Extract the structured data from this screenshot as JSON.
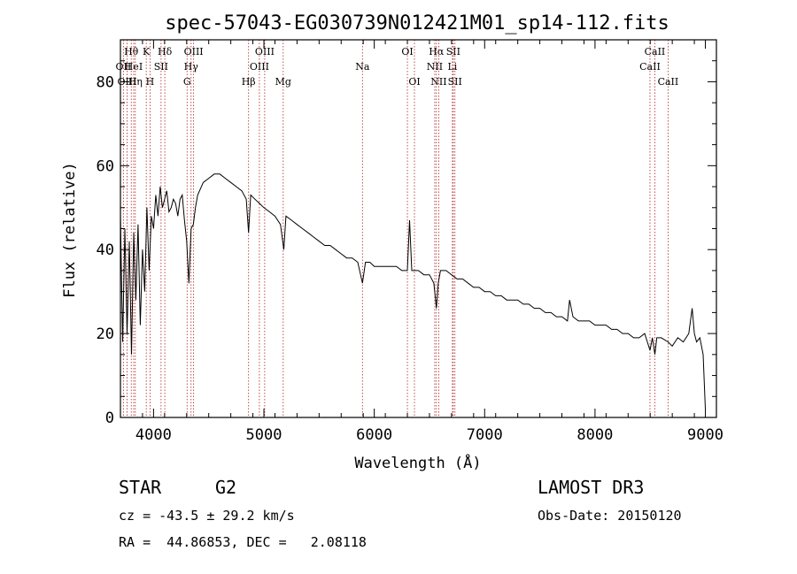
{
  "chart_data": {
    "type": "line",
    "title": "spec-57043-EG030739N012421M01_sp14-112.fits",
    "xlabel": "Wavelength (Å)",
    "ylabel": "Flux (relative)",
    "xlim": [
      3700,
      9100
    ],
    "ylim": [
      0,
      90
    ],
    "xticks": [
      4000,
      5000,
      6000,
      7000,
      8000,
      9000
    ],
    "yticks": [
      0,
      20,
      40,
      60,
      80
    ],
    "ytick_labels": [
      "0",
      "20",
      "40",
      "60",
      "80"
    ],
    "series": [
      {
        "name": "Flux",
        "x": [
          3700,
          3720,
          3740,
          3760,
          3780,
          3800,
          3820,
          3840,
          3860,
          3880,
          3900,
          3920,
          3940,
          3960,
          3980,
          4000,
          4020,
          4040,
          4060,
          4080,
          4100,
          4120,
          4140,
          4160,
          4180,
          4200,
          4220,
          4240,
          4260,
          4280,
          4300,
          4320,
          4340,
          4360,
          4380,
          4400,
          4450,
          4500,
          4550,
          4600,
          4650,
          4700,
          4750,
          4800,
          4840,
          4861,
          4880,
          4920,
          4960,
          5000,
          5050,
          5100,
          5150,
          5180,
          5200,
          5250,
          5300,
          5350,
          5400,
          5450,
          5500,
          5550,
          5600,
          5650,
          5700,
          5750,
          5800,
          5850,
          5893,
          5920,
          5960,
          6000,
          6050,
          6100,
          6150,
          6200,
          6250,
          6300,
          6320,
          6340,
          6360,
          6400,
          6450,
          6500,
          6540,
          6563,
          6580,
          6600,
          6650,
          6700,
          6750,
          6800,
          6850,
          6900,
          6950,
          7000,
          7050,
          7100,
          7150,
          7200,
          7250,
          7300,
          7350,
          7400,
          7450,
          7500,
          7550,
          7600,
          7650,
          7700,
          7750,
          7770,
          7800,
          7850,
          7900,
          7950,
          8000,
          8050,
          8100,
          8150,
          8200,
          8250,
          8300,
          8350,
          8400,
          8450,
          8498,
          8520,
          8542,
          8560,
          8600,
          8662,
          8700,
          8750,
          8800,
          8850,
          8880,
          8900,
          8920,
          8950,
          8980,
          9000
        ],
        "y": [
          48,
          18,
          45,
          20,
          42,
          15,
          44,
          28,
          46,
          22,
          40,
          30,
          50,
          35,
          48,
          45,
          53,
          48,
          55,
          50,
          52,
          54,
          49,
          50,
          52,
          51,
          48,
          52,
          53,
          47,
          42,
          32,
          45,
          46,
          50,
          53,
          56,
          57,
          58,
          58,
          57,
          56,
          55,
          54,
          52,
          44,
          53,
          52,
          51,
          50,
          49,
          48,
          46,
          40,
          48,
          47,
          46,
          45,
          44,
          43,
          42,
          41,
          41,
          40,
          39,
          38,
          38,
          37,
          32,
          37,
          37,
          36,
          36,
          36,
          36,
          36,
          35,
          35,
          47,
          35,
          35,
          35,
          34,
          34,
          32,
          26,
          32,
          35,
          35,
          34,
          33,
          33,
          32,
          31,
          31,
          30,
          30,
          29,
          29,
          28,
          28,
          28,
          27,
          27,
          26,
          26,
          25,
          25,
          24,
          24,
          23,
          28,
          24,
          23,
          23,
          23,
          22,
          22,
          22,
          21,
          21,
          20,
          20,
          19,
          19,
          20,
          16,
          19,
          15,
          19,
          19,
          18,
          17,
          19,
          18,
          20,
          26,
          20,
          18,
          19,
          15,
          2
        ]
      }
    ],
    "spectral_lines": [
      {
        "label": "Hθ",
        "x": 3798,
        "row": 1
      },
      {
        "label": "OII",
        "x": 3727,
        "row": 2
      },
      {
        "label": "HeI",
        "x": 3820,
        "row": 2
      },
      {
        "label": "OIII",
        "x": 3760,
        "row": 3
      },
      {
        "label": "Hη",
        "x": 3835,
        "row": 3
      },
      {
        "label": "K",
        "x": 3934,
        "row": 1
      },
      {
        "label": "SII",
        "x": 4068,
        "row": 2
      },
      {
        "label": "H",
        "x": 3968,
        "row": 3
      },
      {
        "label": "Hδ",
        "x": 4102,
        "row": 1
      },
      {
        "label": "OIII",
        "x": 4363,
        "row": 1
      },
      {
        "label": "Hγ",
        "x": 4340,
        "row": 2
      },
      {
        "label": "G",
        "x": 4304,
        "row": 3
      },
      {
        "label": "Hβ",
        "x": 4861,
        "row": 3
      },
      {
        "label": "OIII",
        "x": 5007,
        "row": 1
      },
      {
        "label": "OIII",
        "x": 4959,
        "row": 2
      },
      {
        "label": "Mg",
        "x": 5175,
        "row": 3
      },
      {
        "label": "Na",
        "x": 5893,
        "row": 2
      },
      {
        "label": "OI",
        "x": 6300,
        "row": 1
      },
      {
        "label": "OI",
        "x": 6364,
        "row": 3
      },
      {
        "label": "Hα",
        "x": 6563,
        "row": 1
      },
      {
        "label": "SII",
        "x": 6716,
        "row": 1
      },
      {
        "label": "NII",
        "x": 6548,
        "row": 2
      },
      {
        "label": "Li",
        "x": 6708,
        "row": 2
      },
      {
        "label": "NII",
        "x": 6584,
        "row": 3
      },
      {
        "label": "SII",
        "x": 6731,
        "row": 3
      },
      {
        "label": "CaII",
        "x": 8542,
        "row": 1
      },
      {
        "label": "CaII",
        "x": 8498,
        "row": 2
      },
      {
        "label": "CaII",
        "x": 8662,
        "row": 3
      }
    ]
  },
  "info": {
    "object_type": "STAR",
    "subclass": "G2",
    "survey": "LAMOST DR3",
    "redshift": "cz = -43.5 ± 29.2 km/s",
    "obs_date": "Obs-Date: 20150120",
    "coords": "RA =  44.86853, DEC =   2.08118"
  }
}
